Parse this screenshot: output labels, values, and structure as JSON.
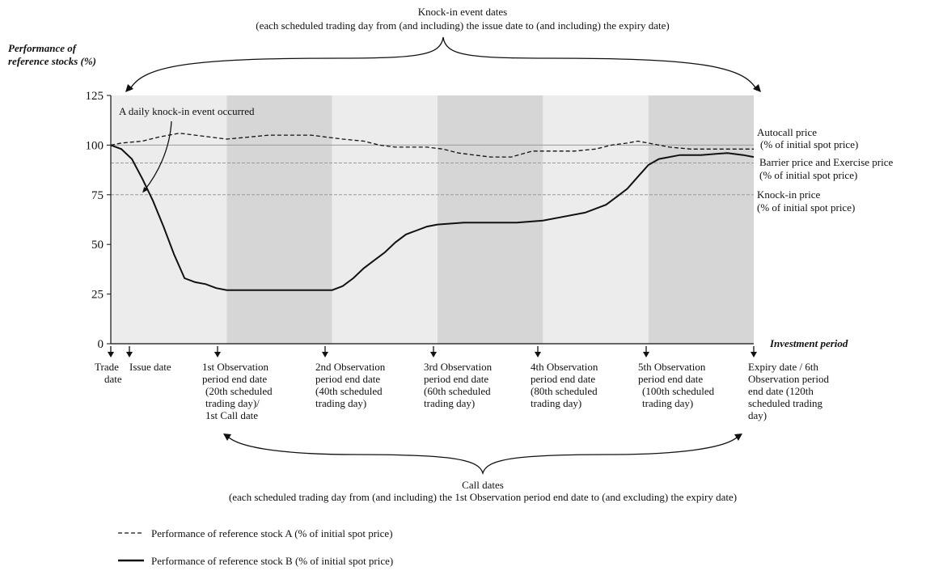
{
  "chart_data": {
    "type": "line",
    "ylabel": "Performance of reference stocks (%)",
    "xlabel": "Investment period",
    "ylim": [
      0,
      125
    ],
    "yticks": [
      0,
      25,
      50,
      75,
      100,
      125
    ],
    "x_unit": "scheduled trading day",
    "xlim": [
      -2,
      120
    ],
    "autocall_price": 100,
    "barrier_price": 91,
    "knock_in_price": 75,
    "observation_periods": [
      {
        "start": 0,
        "end": 20,
        "shade": "light"
      },
      {
        "start": 20,
        "end": 40,
        "shade": "dark"
      },
      {
        "start": 40,
        "end": 60,
        "shade": "light"
      },
      {
        "start": 60,
        "end": 80,
        "shade": "dark"
      },
      {
        "start": 80,
        "end": 100,
        "shade": "light"
      },
      {
        "start": 100,
        "end": 120,
        "shade": "dark"
      }
    ],
    "series": [
      {
        "name": "Performance of reference stock A (% of initial spot price)",
        "style": "dashed",
        "x": [
          -2,
          0,
          4,
          7,
          11,
          14,
          17,
          20,
          24,
          28,
          32,
          36,
          39,
          42,
          46,
          49,
          52,
          56,
          58,
          61,
          64,
          67,
          70,
          74,
          78,
          82,
          86,
          90,
          93,
          96,
          98,
          100,
          104,
          108,
          112,
          116,
          120
        ],
        "values": [
          100,
          101,
          102,
          104,
          106,
          105,
          104,
          103,
          104,
          105,
          105,
          105,
          104,
          103,
          102,
          100,
          99,
          99,
          99,
          98,
          96,
          95,
          94,
          94,
          97,
          97,
          97,
          98,
          100,
          101,
          102,
          101,
          99,
          98,
          98,
          98,
          98
        ]
      },
      {
        "name": "Performance of reference stock B (% of initial spot price)",
        "style": "solid",
        "x": [
          -2,
          0,
          2,
          4,
          6,
          8,
          10,
          12,
          14,
          16,
          18,
          20,
          25,
          30,
          35,
          40,
          42,
          44,
          46,
          48,
          50,
          52,
          54,
          56,
          58,
          60,
          65,
          70,
          75,
          80,
          84,
          88,
          92,
          94,
          96,
          97,
          98,
          99,
          100,
          102,
          106,
          110,
          115,
          118,
          120
        ],
        "values": [
          100,
          98,
          93,
          83,
          72,
          59,
          45,
          33,
          31,
          30,
          28,
          27,
          27,
          27,
          27,
          27,
          29,
          33,
          38,
          42,
          46,
          51,
          55,
          57,
          59,
          60,
          61,
          61,
          61,
          62,
          64,
          66,
          70,
          74,
          78,
          81,
          84,
          87,
          90,
          93,
          95,
          95,
          96,
          95,
          94
        ]
      }
    ]
  },
  "top_annotation": {
    "title": "Knock-in event dates",
    "subtitle": "(each scheduled trading day from (and including) the issue date to (and including) the expiry date)"
  },
  "bottom_annotation": {
    "title": "Call dates",
    "subtitle": "(each scheduled trading day from (and including) the 1st Observation period end date to (and excluding) the expiry date)"
  },
  "event_annotation": "A daily knock-in event occurred",
  "axis_title_lines": [
    "Performance of",
    "reference stocks (%)"
  ],
  "x_axis_label": "Investment period",
  "y_tick_labels": [
    "0",
    "25",
    "50",
    "75",
    "100",
    "125"
  ],
  "right_labels": {
    "autocall": [
      "Autocall price",
      "(% of initial spot price)"
    ],
    "barrier": [
      "Barrier price and Exercise price",
      "(% of initial spot price)"
    ],
    "knock_in": [
      "Knock-in price",
      "(% of initial spot price)"
    ]
  },
  "date_labels": {
    "trade": [
      "Trade",
      "date"
    ],
    "issue": [
      "Issue date"
    ],
    "obs1": [
      "1st Observation",
      "period end date",
      "(20th scheduled",
      "trading day)/",
      "1st Call date"
    ],
    "obs2": [
      "2nd Observation",
      "period end date",
      "(40th scheduled",
      "trading day)"
    ],
    "obs3": [
      "3rd Observation",
      "period end date",
      "(60th scheduled",
      "trading day)"
    ],
    "obs4": [
      "4th Observation",
      "period end date",
      "(80th scheduled",
      "trading day)"
    ],
    "obs5": [
      "5th Observation",
      "period end date",
      "(100th scheduled",
      "trading day)"
    ],
    "expiry": [
      "Expiry date / 6th",
      "Observation period",
      "end date (120th",
      "scheduled trading",
      "day)"
    ]
  },
  "legend": {
    "a": "Performance of reference stock A (% of initial spot price)",
    "b": "Performance of reference stock B (% of initial spot price)"
  },
  "colors": {
    "light_band": "#ececec",
    "dark_band": "#d6d6d6",
    "line": "#111111",
    "ref_line": "#9a9a9a"
  }
}
